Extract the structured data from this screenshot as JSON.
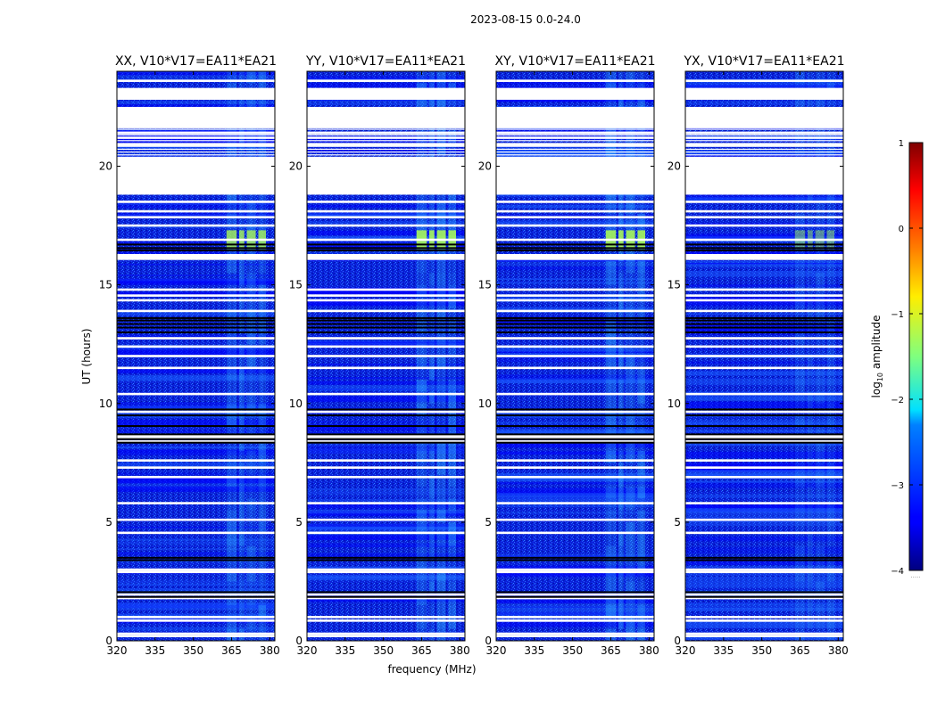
{
  "figure": {
    "suptitle": "2023-08-15 0.0-24.0",
    "xlabel": "frequency (MHz)",
    "ylabel": "UT (hours)"
  },
  "colorbar": {
    "label_prefix": "log",
    "label_sub": "10",
    "label_suffix": " amplitude",
    "ticks": [
      "1",
      "0",
      "−1",
      "−2",
      "−3",
      "−4"
    ],
    "range": [
      -4,
      1
    ],
    "colormap": "jet",
    "footer": "....."
  },
  "colors": {
    "background": "#000080",
    "flagged": "#ffffff",
    "gap_lines": "#000000",
    "low": "#0000ff",
    "mid_low": "#1a5cff",
    "mid": "#33b5ff",
    "rfi": "#7effd6",
    "rfi_strong": "#b0ff4d"
  },
  "chart_data": {
    "type": "heatmap",
    "x_range_mhz": [
      320,
      382
    ],
    "y_range_hours": [
      0,
      24
    ],
    "x_ticks": [
      "320",
      "335",
      "350",
      "365",
      "380"
    ],
    "y_ticks": [
      "0",
      "5",
      "10",
      "15",
      "20"
    ],
    "panels": [
      {
        "title": "XX, V10*V17=EA11*EA21",
        "rfi_strength": 0.9
      },
      {
        "title": "YY, V10*V17=EA11*EA21",
        "rfi_strength": 1.0
      },
      {
        "title": "XY, V10*V17=EA11*EA21",
        "rfi_strength": 1.0
      },
      {
        "title": "YX, V10*V17=EA11*EA21",
        "rfi_strength": 0.55
      }
    ],
    "flagged_time_ranges_hours": [
      [
        16.3,
        16.05
      ],
      [
        20.4,
        18.8
      ],
      [
        19.6,
        18.9
      ],
      [
        22.5,
        21.6
      ],
      [
        23.3,
        22.8
      ]
    ],
    "flagged_time_lines_hours": [
      0.2,
      0.3,
      0.85,
      1.0,
      1.8,
      1.95,
      2.9,
      3.0,
      4.55,
      5.1,
      5.8,
      6.9,
      7.3,
      7.6,
      8.4,
      8.55,
      8.65,
      9.65,
      10.4,
      11.5,
      12.0,
      12.4,
      12.75,
      13.9,
      14.35,
      14.55,
      14.8,
      16.9,
      17.5,
      17.85,
      18.1,
      18.5,
      20.9,
      21.2,
      21.4,
      23.05,
      23.6
    ],
    "black_time_lines_hours": [
      9.75,
      9.5,
      9.05,
      8.7,
      8.5,
      8.35,
      3.5,
      3.4,
      2.05,
      1.85,
      13.0,
      13.2,
      13.35,
      13.5,
      13.6,
      16.45,
      16.55,
      16.7
    ],
    "rfi_channels_mhz": [
      [
        363,
        367
      ],
      [
        368,
        370
      ],
      [
        371,
        374.5
      ],
      [
        375.5,
        378.5
      ]
    ],
    "strong_rfi_time_range_hours": [
      16.5,
      17.3
    ]
  }
}
